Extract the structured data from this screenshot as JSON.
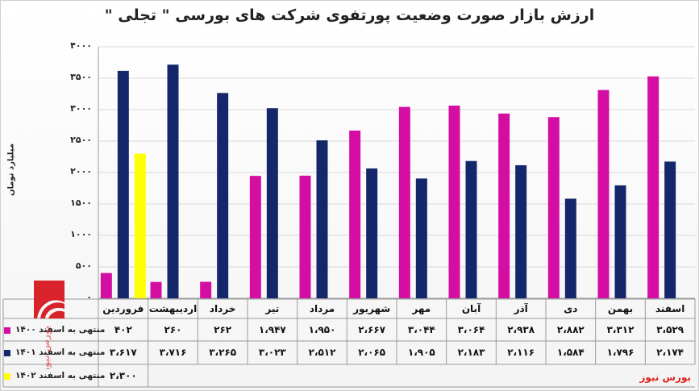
{
  "chart_data": {
    "type": "bar",
    "title": "ارزش بازار صورت وضعیت پورتفوی شرکت های بورسی \" تجلی \"",
    "ylabel": "میلیارد تومان",
    "ylim": [
      0,
      4000
    ],
    "yticks": [
      "۰",
      "۵۰۰",
      "۱۰۰۰",
      "۱۵۰۰",
      "۲۰۰۰",
      "۲۵۰۰",
      "۳۰۰۰",
      "۳۵۰۰",
      "۴۰۰۰"
    ],
    "ytick_values": [
      0,
      500,
      1000,
      1500,
      2000,
      2500,
      3000,
      3500,
      4000
    ],
    "grid": true,
    "legend": "bottom-left (data table)",
    "categories": [
      "فروردین",
      "اردیبهشت",
      "خرداد",
      "تیر",
      "مرداد",
      "شهریور",
      "مهر",
      "آبان",
      "آذر",
      "دی",
      "بهمن",
      "اسفند"
    ],
    "series": [
      {
        "name": "منتهی به اسفند ۱۴۰۰",
        "color": "#d40ea2",
        "values": [
          402,
          260,
          262,
          1947,
          1950,
          2667,
          3044,
          3064,
          2938,
          2882,
          3312,
          3529
        ],
        "labels": [
          "۴۰۲",
          "۲۶۰",
          "۲۶۲",
          "۱،۹۴۷",
          "۱،۹۵۰",
          "۲،۶۶۷",
          "۳،۰۴۴",
          "۳،۰۶۴",
          "۲،۹۳۸",
          "۲،۸۸۲",
          "۳،۳۱۲",
          "۳،۵۲۹"
        ]
      },
      {
        "name": "منتهی به اسفند ۱۴۰۱",
        "color": "#15276b",
        "values": [
          3617,
          3716,
          3265,
          3023,
          2512,
          2065,
          1905,
          2183,
          2116,
          1584,
          1796,
          2174
        ],
        "labels": [
          "۳،۶۱۷",
          "۳،۷۱۶",
          "۳،۲۶۵",
          "۳،۰۲۳",
          "۲،۵۱۲",
          "۲،۰۶۵",
          "۱،۹۰۵",
          "۲،۱۸۳",
          "۲،۱۱۶",
          "۱،۵۸۴",
          "۱،۷۹۶",
          "۲،۱۷۴"
        ]
      },
      {
        "name": "منتهی به اسفند ۱۴۰۲",
        "color": "#ffff00",
        "values": [
          2300,
          null,
          null,
          null,
          null,
          null,
          null,
          null,
          null,
          null,
          null,
          null
        ],
        "labels": [
          "۲،۳۰۰",
          "",
          "",
          "",
          "",
          "",
          "",
          "",
          "",
          "",
          "",
          ""
        ]
      }
    ]
  },
  "source": "بورس نیوز",
  "watermark": "بورس نیوز"
}
